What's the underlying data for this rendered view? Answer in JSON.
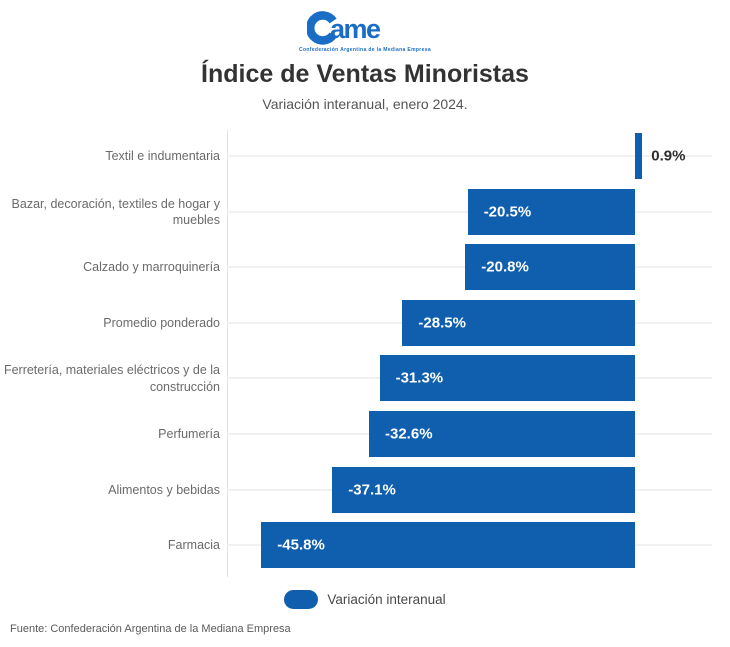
{
  "logo": {
    "brand": "Came",
    "brand_wordmark_suffix": "ame",
    "tagline": "Confederación Argentina de la Mediana Empresa"
  },
  "header": {
    "title": "Índice de Ventas Minoristas",
    "subtitle": "Variación interanual, enero 2024."
  },
  "chart_data": {
    "type": "bar",
    "orientation": "horizontal",
    "title": "Índice de Ventas Minoristas",
    "subtitle": "Variación interanual, enero 2024.",
    "categories": [
      "Textil e indumentaria",
      "Bazar, decoración, textiles de hogar y muebles",
      "Calzado y marroquinería",
      "Promedio ponderado",
      "Ferretería, materiales eléctricos y de la construcción",
      "Perfumería",
      "Alimentos y bebidas",
      "Farmacia"
    ],
    "values": [
      0.9,
      -20.5,
      -20.8,
      -28.5,
      -31.3,
      -32.6,
      -37.1,
      -45.8
    ],
    "display_labels": [
      "0.9%",
      "-20.5%",
      "-20.8%",
      "-28.5%",
      "-31.3%",
      "-32.6%",
      "-37.1%",
      "-45.8%"
    ],
    "unit": "%",
    "xlim": [
      -50,
      9.4
    ],
    "grid": "light horizontal gridline per category row; single vertical line at axis start",
    "legend": {
      "label": "Variación interanual",
      "position": "bottom-center"
    },
    "bar_color": "#0f5fae",
    "value_label_color_inside": "#ffffff",
    "value_label_color_outside": "#2e2e2e"
  },
  "legend": {
    "label": "Variación interanual"
  },
  "footer": {
    "source": "Fuente: Confederación Argentina de la Mediana Empresa"
  },
  "colors": {
    "accent_blue": "#0f5fae",
    "logo_blue": "#1a6dc4",
    "title_text": "#333333",
    "subtitle_text": "#555555",
    "category_label": "#6a6a6a",
    "gridline": "#f1f1f1",
    "axis_line": "#e2e2e2",
    "background": "#ffffff"
  }
}
